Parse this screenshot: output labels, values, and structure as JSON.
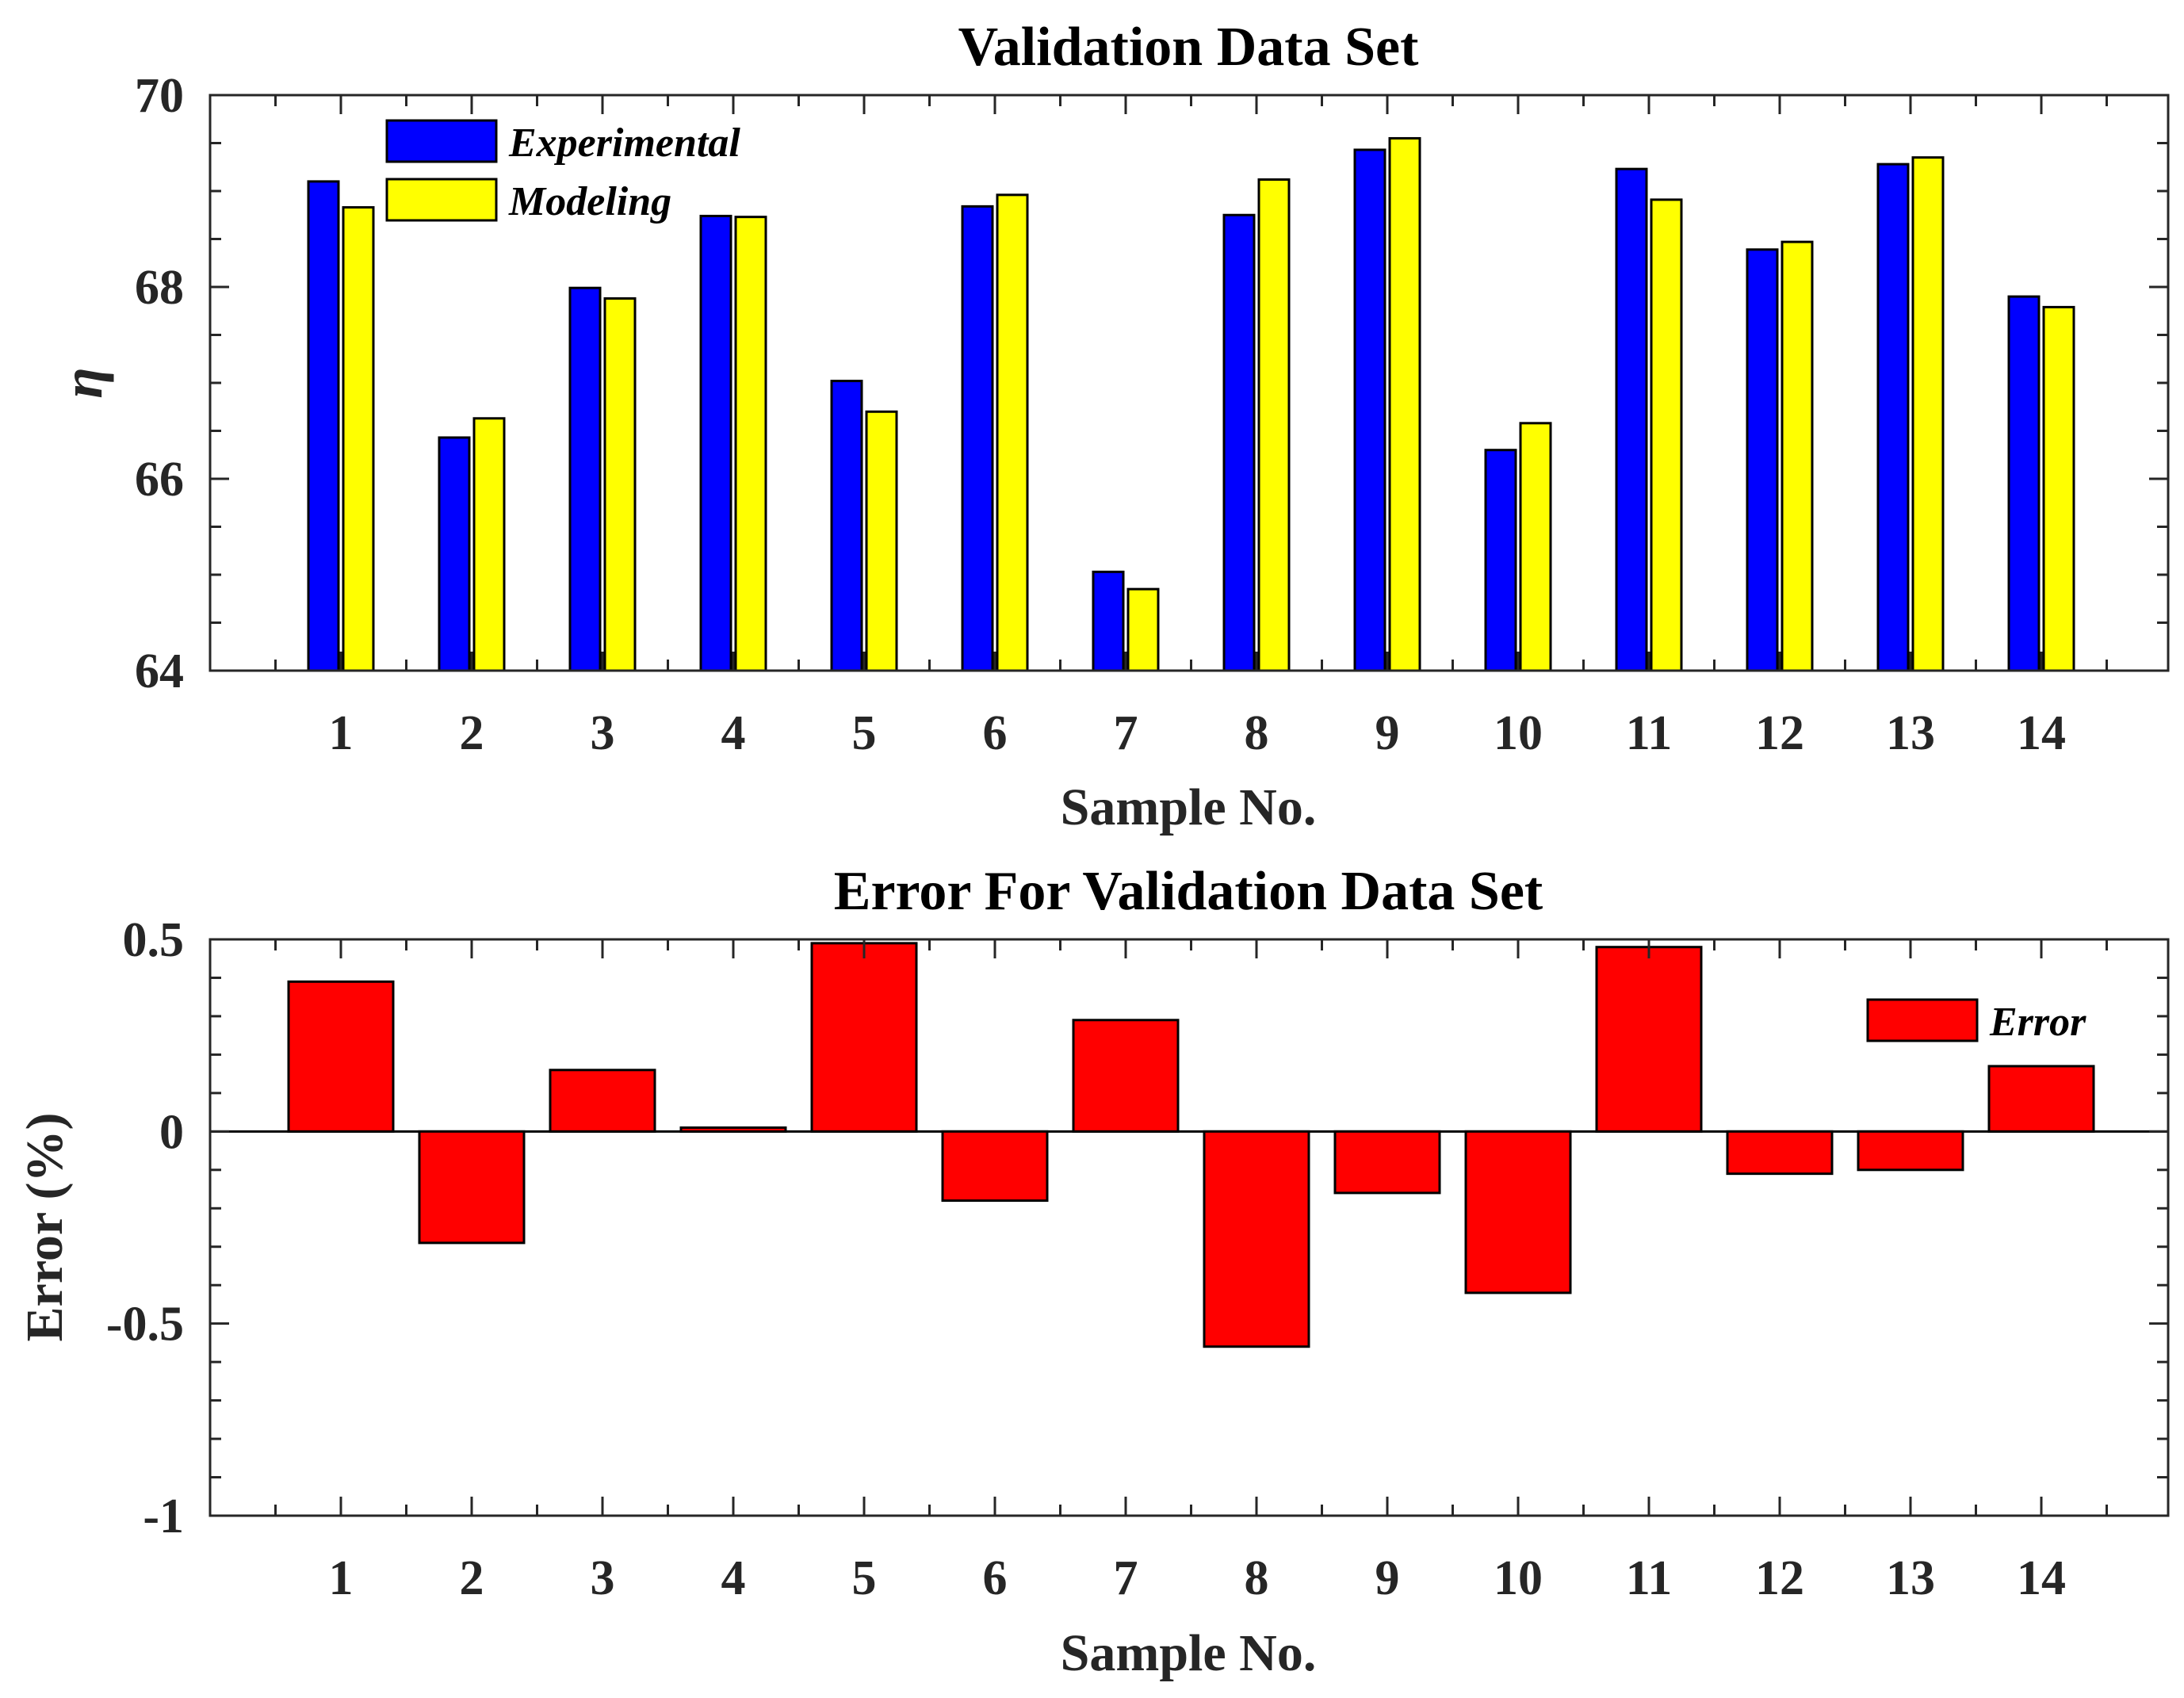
{
  "chart_data": [
    {
      "type": "bar",
      "title": "Validation Data Set",
      "xlabel": "Sample No.",
      "ylabel": "η",
      "ylim": [
        64,
        70
      ],
      "yticks": [
        64,
        66,
        68,
        70
      ],
      "categories": [
        "1",
        "2",
        "3",
        "4",
        "5",
        "6",
        "7",
        "8",
        "9",
        "10",
        "11",
        "12",
        "13",
        "14"
      ],
      "series": [
        {
          "name": "Experimental",
          "color": "#0000ff",
          "values": [
            69.1,
            66.43,
            67.99,
            68.74,
            67.02,
            68.84,
            65.03,
            68.75,
            69.43,
            66.3,
            69.23,
            68.39,
            69.28,
            67.9
          ]
        },
        {
          "name": "Modeling",
          "color": "#ffff00",
          "values": [
            68.83,
            66.63,
            67.88,
            68.73,
            66.7,
            68.96,
            64.85,
            69.12,
            69.55,
            66.58,
            68.91,
            68.47,
            69.35,
            67.79
          ]
        }
      ],
      "legend_position": "top-left"
    },
    {
      "type": "bar",
      "title": "Error For Validation Data Set",
      "xlabel": "Sample No.",
      "ylabel": "Error (%)",
      "ylim": [
        -1,
        0.5
      ],
      "yticks": [
        -1,
        -0.5,
        0,
        0.5
      ],
      "ytick_labels": [
        "-1",
        "-0.5",
        "0",
        "0.5"
      ],
      "categories": [
        "1",
        "2",
        "3",
        "4",
        "5",
        "6",
        "7",
        "8",
        "9",
        "10",
        "11",
        "12",
        "13",
        "14"
      ],
      "series": [
        {
          "name": "Error",
          "color": "#ff0000",
          "values": [
            0.39,
            -0.29,
            0.16,
            0.01,
            0.49,
            -0.18,
            0.29,
            -0.56,
            -0.16,
            -0.42,
            0.48,
            -0.11,
            -0.1,
            0.17
          ]
        }
      ],
      "legend_position": "top-right"
    }
  ]
}
